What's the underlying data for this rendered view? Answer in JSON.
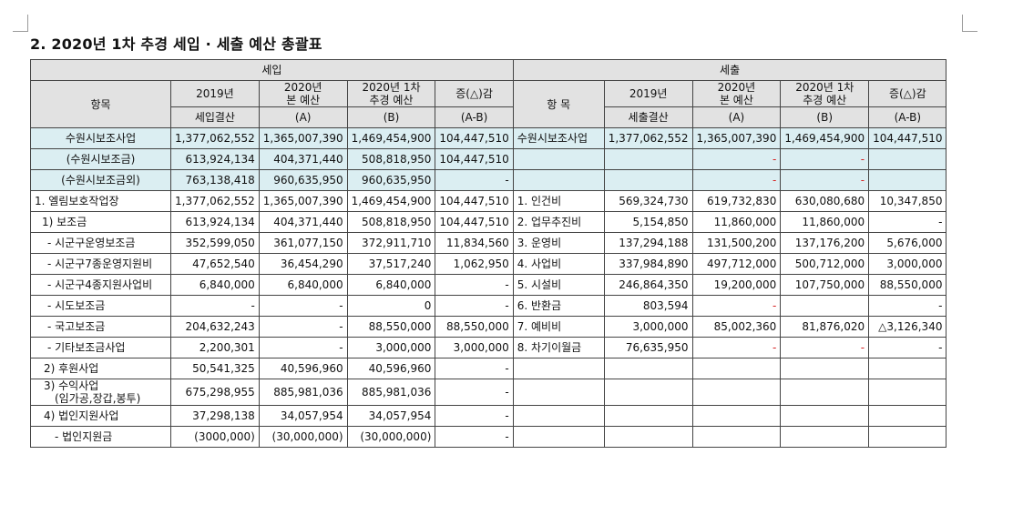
{
  "title": "2. 2020년 1차 추경 세입 · 세출 예산 총괄표",
  "header": {
    "revenue_section": "세입",
    "expense_section": "세출",
    "item_label": "항목",
    "item_label_expense": "항  목",
    "col_2019": "2019년",
    "col_2020_main_1": "2020년",
    "col_2020_main_2": "본 예산",
    "col_2020_supp_1": "2020년 1차",
    "col_2020_supp_2": "추경 예산",
    "col_diff": "증(△)감",
    "sub_2019_revenue": "세입결산",
    "sub_2019_expense": "세출결산",
    "sub_a": "(A)",
    "sub_b": "(B)",
    "sub_ab": "(A-B)"
  },
  "summary_rows": [
    {
      "r_item": "수원시보조사업",
      "r_2019": "1,377,062,552",
      "r_2020": "1,365,007,390",
      "r_supp": "1,469,454,900",
      "r_diff": "104,447,510",
      "e_item": "수원시보조사업",
      "e_2019": "1,377,062,552",
      "e_2020": "1,365,007,390",
      "e_supp": "1,469,454,900",
      "e_diff": "104,447,510"
    },
    {
      "r_item": "(수원시보조금)",
      "r_2019": "613,924,134",
      "r_2020": "404,371,440",
      "r_supp": "508,818,950",
      "r_diff": "104,447,510",
      "e_item": "",
      "e_2019": "",
      "e_2020": "-",
      "e_supp": "-",
      "e_diff": ""
    },
    {
      "r_item": "(수원시보조금외)",
      "r_2019": "763,138,418",
      "r_2020": "960,635,950",
      "r_supp": "960,635,950",
      "r_diff": "-",
      "e_item": "",
      "e_2019": "",
      "e_2020": "-",
      "e_supp": "-",
      "e_diff": ""
    }
  ],
  "detail_rows": [
    {
      "r_item": "1. 엘림보호작업장",
      "r_2019": "1,377,062,552",
      "r_2020": "1,365,007,390",
      "r_supp": "1,469,454,900",
      "r_diff": "104,447,510",
      "e_item": "1. 인건비",
      "e_2019": "569,324,730",
      "e_2020": "619,732,830",
      "e_supp": "630,080,680",
      "e_diff": "10,347,850"
    },
    {
      "r_item": "1) 보조금",
      "r_2019": "613,924,134",
      "r_2020": "404,371,440",
      "r_supp": "508,818,950",
      "r_diff": "104,447,510",
      "e_item": "2. 업무추진비",
      "e_2019": "5,154,850",
      "e_2020": "11,860,000",
      "e_supp": "11,860,000",
      "e_diff": "-"
    },
    {
      "r_item": "- 시군구운영보조금",
      "r_2019": "352,599,050",
      "r_2020": "361,077,150",
      "r_supp": "372,911,710",
      "r_diff": "11,834,560",
      "e_item": "3. 운영비",
      "e_2019": "137,294,188",
      "e_2020": "131,500,200",
      "e_supp": "137,176,200",
      "e_diff": "5,676,000"
    },
    {
      "r_item": "- 시군구7종운영지원비",
      "r_2019": "47,652,540",
      "r_2020": "36,454,290",
      "r_supp": "37,517,240",
      "r_diff": "1,062,950",
      "e_item": "4. 사업비",
      "e_2019": "337,984,890",
      "e_2020": "497,712,000",
      "e_supp": "500,712,000",
      "e_diff": "3,000,000"
    },
    {
      "r_item": "- 시군구4종지원사업비",
      "r_2019": "6,840,000",
      "r_2020": "6,840,000",
      "r_supp": "6,840,000",
      "r_diff": "-",
      "e_item": "5. 시설비",
      "e_2019": "246,864,350",
      "e_2020": "19,200,000",
      "e_supp": "107,750,000",
      "e_diff": "88,550,000"
    },
    {
      "r_item": "- 시도보조금",
      "r_2019": "-",
      "r_2020": "-",
      "r_supp": "0",
      "r_diff": "-",
      "e_item": "6. 반환금",
      "e_2019": "803,594",
      "e_2020": "-",
      "e_supp": "",
      "e_diff": "-"
    },
    {
      "r_item": "- 국고보조금",
      "r_2019": "204,632,243",
      "r_2020": "-",
      "r_supp": "88,550,000",
      "r_diff": "88,550,000",
      "e_item": "7. 예비비",
      "e_2019": "3,000,000",
      "e_2020": "85,002,360",
      "e_supp": "81,876,020",
      "e_diff": "△3,126,340"
    },
    {
      "r_item": "- 기타보조금사업",
      "r_2019": "2,200,301",
      "r_2020": "-",
      "r_supp": "3,000,000",
      "r_diff": "3,000,000",
      "e_item": "8. 차기이월금",
      "e_2019": "76,635,950",
      "e_2020": "-",
      "e_supp": "-",
      "e_diff": "-"
    },
    {
      "r_item": "2) 후원사업",
      "r_2019": "50,541,325",
      "r_2020": "40,596,960",
      "r_supp": "40,596,960",
      "r_diff": "-",
      "e_item": "",
      "e_2019": "",
      "e_2020": "",
      "e_supp": "",
      "e_diff": ""
    },
    {
      "r_item": "3) 수익사업",
      "r_item2": "(임가공,장갑,봉투)",
      "r_2019": "675,298,955",
      "r_2020": "885,981,036",
      "r_supp": "885,981,036",
      "r_diff": "-",
      "e_item": "",
      "e_2019": "",
      "e_2020": "",
      "e_supp": "",
      "e_diff": ""
    },
    {
      "r_item": "4) 법인지원사업",
      "r_2019": "37,298,138",
      "r_2020": "34,057,954",
      "r_supp": "34,057,954",
      "r_diff": "-",
      "e_item": "",
      "e_2019": "",
      "e_2020": "",
      "e_supp": "",
      "e_diff": ""
    },
    {
      "r_item": "- 법인지원금",
      "r_2019": "(3000,000)",
      "r_2020": "(30,000,000)",
      "r_supp": "(30,000,000)",
      "r_diff": "-",
      "e_item": "",
      "e_2019": "",
      "e_2020": "",
      "e_supp": "",
      "e_diff": ""
    }
  ]
}
